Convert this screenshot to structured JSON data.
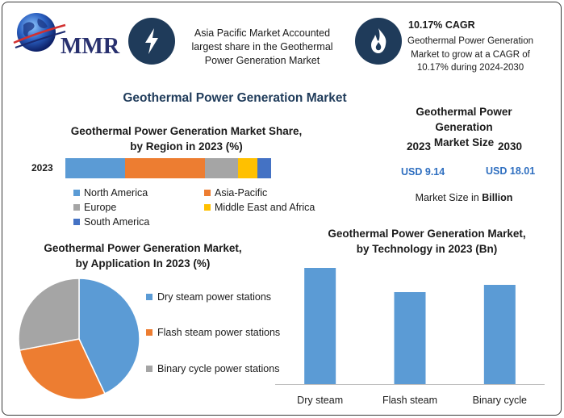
{
  "logo": {
    "text": "MMR",
    "icon": "globe-icon"
  },
  "highlights": [
    {
      "icon": "lightning-icon",
      "text": "Asia Pacific Market Accounted largest share in the Geothermal Power Generation Market"
    },
    {
      "icon": "flame-icon",
      "title": "10.17% CAGR",
      "text": "Geothermal Power Generation Market to grow at a CAGR of 10.17% during 2024-2030"
    }
  ],
  "main_title": "Geothermal Power Generation Market",
  "market_size": {
    "title_line1": "Geothermal Power Generation",
    "title_line2": "Market Size",
    "years": [
      "2023",
      "2030"
    ],
    "values": [
      "USD 9.14",
      "USD 18.01"
    ],
    "unit_prefix": "Market Size in ",
    "unit": "Billion"
  },
  "chart_data": [
    {
      "type": "bar",
      "orientation": "horizontal-stacked",
      "title_line1": "Geothermal Power Generation Market Share,",
      "title_line2": "by Region in 2023 (%)",
      "categories": [
        "2023"
      ],
      "series": [
        {
          "name": "North America",
          "values": [
            29
          ],
          "color": "#5b9bd5"
        },
        {
          "name": "Asia-Pacific",
          "values": [
            39
          ],
          "color": "#ed7d31"
        },
        {
          "name": "Europe",
          "values": [
            16
          ],
          "color": "#a5a5a5"
        },
        {
          "name": "Middle East and Africa",
          "values": [
            9.5
          ],
          "color": "#ffc000"
        },
        {
          "name": "South America",
          "values": [
            6.5
          ],
          "color": "#4472c4"
        }
      ],
      "legend": "bottom"
    },
    {
      "type": "pie",
      "title_line1": "Geothermal Power Generation Market,",
      "title_line2": "by Application In 2023 (%)",
      "slices": [
        {
          "name": "Dry steam power stations",
          "value": 43,
          "color": "#5b9bd5"
        },
        {
          "name": "Flash steam power stations",
          "value": 29,
          "color": "#ed7d31"
        },
        {
          "name": "Binary cycle power stations",
          "value": 28,
          "color": "#a5a5a5"
        }
      ],
      "legend": "right"
    },
    {
      "type": "bar",
      "title_line1": "Geothermal Power Generation Market,",
      "title_line2": "by Technology in 2023 (Bn)",
      "categories": [
        "Dry steam",
        "Flash steam",
        "Binary cycle"
      ],
      "values": [
        4.8,
        3.8,
        4.1
      ],
      "color": "#5b9bd5",
      "ylim": [
        0,
        5
      ],
      "grid": false
    }
  ]
}
